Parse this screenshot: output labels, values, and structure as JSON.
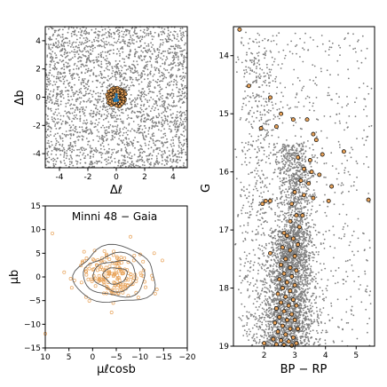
{
  "figure_colors": {
    "field_gray": "#7f7f7f",
    "member_orange": "#e8a35a",
    "center_blue": "#1f77b4",
    "contour_gray": "#555555"
  },
  "chart_data": [
    {
      "panel": "sky",
      "type": "scatter",
      "xlabel": "Δℓ",
      "ylabel": "Δb",
      "xlim": [
        -5,
        5
      ],
      "ylim": [
        -5,
        5
      ],
      "x_ticks": [
        "-4",
        "-2",
        "0",
        "2",
        "4"
      ],
      "y_ticks": [
        "-4",
        "-2",
        "0",
        "2",
        "4"
      ],
      "field_density": "uniform dense",
      "members_radius_deg": 0.7
    },
    {
      "panel": "proper-motion",
      "type": "scatter",
      "title": "Minni 48  −  Gaia",
      "xlabel": "μℓcosb",
      "ylabel": "μb",
      "xlim": [
        10,
        -20
      ],
      "ylim": [
        -15,
        15
      ],
      "x_ticks": [
        "10",
        "5",
        "0",
        "−5",
        "−10",
        "−15",
        "−20"
      ],
      "y_ticks": [
        "−15",
        "−10",
        "−5",
        "0",
        "5",
        "10",
        "15"
      ],
      "center": [
        -4.8,
        0.3
      ],
      "contour_radii": [
        [
          2.5,
          1.7
        ],
        [
          4.5,
          3.2
        ],
        [
          6.5,
          4.5
        ],
        [
          8.5,
          6.0
        ]
      ]
    },
    {
      "panel": "cmd",
      "type": "scatter",
      "xlabel": "BP − RP",
      "ylabel": "G",
      "xlim": [
        1.0,
        5.6
      ],
      "ylim": [
        19.0,
        13.5
      ],
      "x_ticks": [
        "2",
        "3",
        "4",
        "5"
      ],
      "y_ticks": [
        "14",
        "15",
        "16",
        "17",
        "18",
        "19"
      ],
      "members": [
        [
          1.2,
          13.55
        ],
        [
          1.5,
          14.52
        ],
        [
          2.2,
          14.72
        ],
        [
          1.9,
          15.25
        ],
        [
          2.4,
          15.22
        ],
        [
          2.55,
          15.0
        ],
        [
          2.95,
          15.1
        ],
        [
          3.4,
          15.1
        ],
        [
          3.6,
          15.35
        ],
        [
          3.7,
          15.45
        ],
        [
          3.1,
          15.75
        ],
        [
          3.5,
          15.8
        ],
        [
          3.9,
          15.7
        ],
        [
          4.6,
          15.65
        ],
        [
          3.3,
          15.95
        ],
        [
          3.55,
          16.0
        ],
        [
          3.8,
          16.05
        ],
        [
          3.2,
          16.15
        ],
        [
          3.45,
          16.2
        ],
        [
          4.2,
          16.25
        ],
        [
          3.0,
          16.35
        ],
        [
          3.3,
          16.4
        ],
        [
          3.6,
          16.45
        ],
        [
          2.05,
          16.5
        ],
        [
          1.95,
          16.55
        ],
        [
          4.1,
          16.5
        ],
        [
          2.2,
          16.5
        ],
        [
          5.4,
          16.48
        ],
        [
          2.9,
          16.55
        ],
        [
          3.25,
          16.75
        ],
        [
          3.05,
          16.75
        ],
        [
          2.85,
          16.85
        ],
        [
          3.15,
          16.95
        ],
        [
          2.65,
          17.05
        ],
        [
          2.75,
          17.1
        ],
        [
          2.95,
          17.15
        ],
        [
          3.1,
          17.25
        ],
        [
          2.6,
          17.3
        ],
        [
          2.85,
          17.35
        ],
        [
          3.0,
          17.45
        ],
        [
          2.2,
          17.4
        ],
        [
          2.7,
          17.5
        ],
        [
          2.55,
          17.6
        ],
        [
          2.85,
          17.65
        ],
        [
          3.05,
          17.7
        ],
        [
          2.65,
          17.75
        ],
        [
          2.9,
          17.8
        ],
        [
          2.5,
          17.85
        ],
        [
          2.75,
          17.9
        ],
        [
          3.0,
          17.95
        ],
        [
          2.6,
          18.0
        ],
        [
          2.85,
          18.05
        ],
        [
          2.45,
          18.1
        ],
        [
          2.7,
          18.15
        ],
        [
          2.95,
          18.2
        ],
        [
          2.55,
          18.25
        ],
        [
          2.8,
          18.3
        ],
        [
          3.05,
          18.3
        ],
        [
          2.4,
          18.35
        ],
        [
          2.65,
          18.4
        ],
        [
          2.9,
          18.45
        ],
        [
          2.5,
          18.5
        ],
        [
          2.75,
          18.55
        ],
        [
          3.0,
          18.55
        ],
        [
          2.35,
          18.6
        ],
        [
          2.6,
          18.65
        ],
        [
          2.85,
          18.7
        ],
        [
          3.1,
          18.7
        ],
        [
          2.45,
          18.75
        ],
        [
          2.7,
          18.8
        ],
        [
          2.95,
          18.85
        ],
        [
          2.3,
          18.88
        ],
        [
          2.55,
          18.9
        ],
        [
          2.8,
          18.92
        ],
        [
          3.05,
          18.95
        ],
        [
          2.0,
          18.95
        ],
        [
          2.4,
          18.97
        ],
        [
          2.65,
          18.98
        ],
        [
          2.9,
          18.99
        ]
      ]
    }
  ]
}
